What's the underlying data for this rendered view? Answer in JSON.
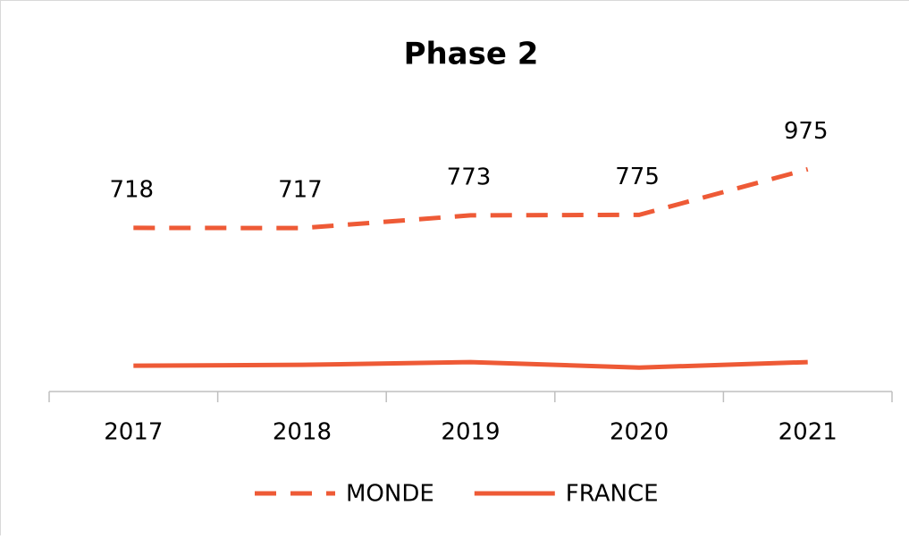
{
  "chart_data": {
    "type": "line",
    "title": "Phase 2",
    "categories": [
      "2017",
      "2018",
      "2019",
      "2020",
      "2021"
    ],
    "series": [
      {
        "name": "MONDE",
        "color": "#ee5a36",
        "dashed": true,
        "values": [
          718,
          717,
          773,
          775,
          975
        ]
      },
      {
        "name": "FRANCE",
        "color": "#ee5a36",
        "dashed": false,
        "values": [
          113,
          117,
          129,
          105,
          129
        ]
      }
    ],
    "ylim": [
      0,
      1200
    ],
    "legend": "bottom"
  }
}
